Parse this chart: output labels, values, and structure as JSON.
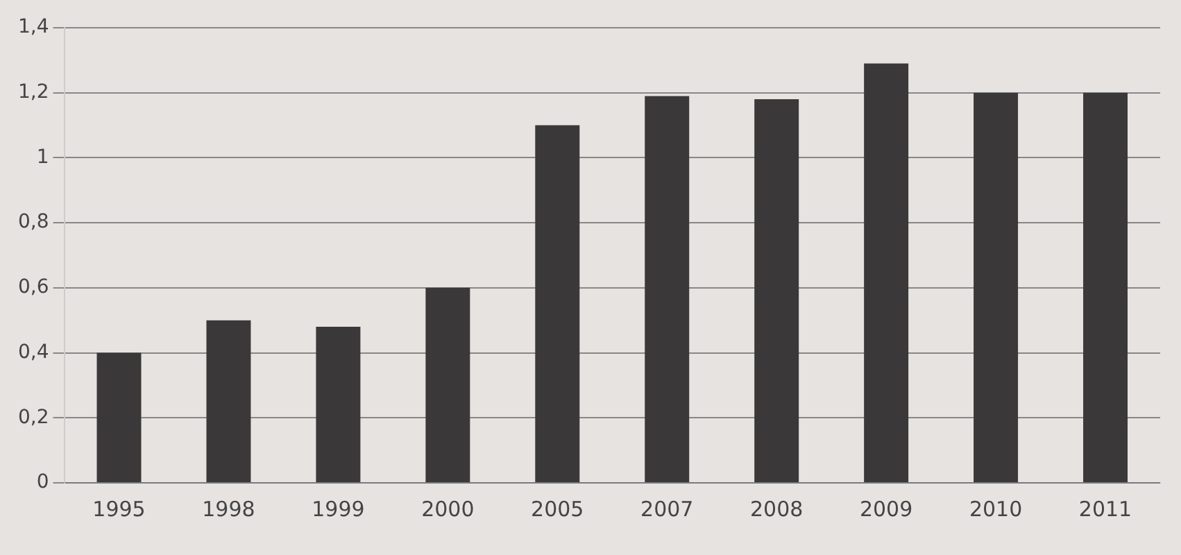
{
  "chart_data": {
    "type": "bar",
    "categories": [
      "1995",
      "1998",
      "1999",
      "2000",
      "2005",
      "2007",
      "2008",
      "2009",
      "2010",
      "2011"
    ],
    "values": [
      0.4,
      0.5,
      0.48,
      0.6,
      1.1,
      1.19,
      1.18,
      1.29,
      1.2,
      1.2
    ],
    "color": "#3a3838",
    "ylim": [
      0,
      1.4
    ],
    "yticks": [
      0,
      {
        "value": 0.2,
        "label": "0,2"
      },
      {
        "value": 0.4,
        "label": "0,4"
      },
      {
        "value": 0.6,
        "label": "0,6"
      },
      {
        "value": 0.8,
        "label": "0,8"
      },
      1,
      {
        "value": 1.2,
        "label": "1,2"
      },
      {
        "value": 1.4,
        "label": "1,4"
      }
    ],
    "grid": "y",
    "legend": false
  }
}
